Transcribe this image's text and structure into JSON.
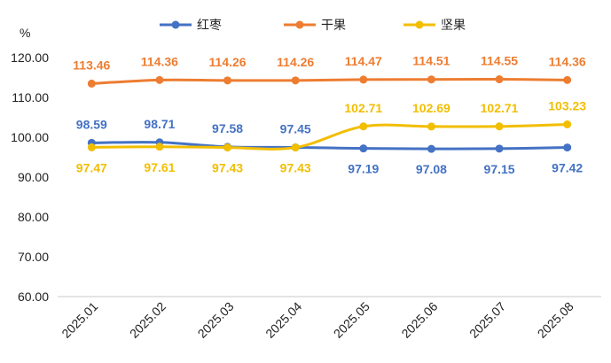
{
  "chart_data": {
    "type": "line",
    "unit_label": "%",
    "categories": [
      "2025.01",
      "2025.02",
      "2025.03",
      "2025.04",
      "2025.05",
      "2025.06",
      "2025.07",
      "2025.08"
    ],
    "ylim": [
      60,
      120
    ],
    "yticks": [
      "60.00",
      "70.00",
      "80.00",
      "90.00",
      "100.00",
      "110.00",
      "120.00"
    ],
    "ytick_values": [
      60,
      70,
      80,
      90,
      100,
      110,
      120
    ],
    "grid": false,
    "legend_position": "top",
    "series": [
      {
        "name": "红枣",
        "color": "#4472C4",
        "values": [
          98.59,
          98.71,
          97.58,
          97.45,
          97.19,
          97.08,
          97.15,
          97.42
        ],
        "labels": [
          "98.59",
          "98.71",
          "97.58",
          "97.45",
          "97.19",
          "97.08",
          "97.15",
          "97.42"
        ],
        "label_pos": [
          "above",
          "above",
          "above",
          "above",
          "below",
          "below",
          "below",
          "below"
        ]
      },
      {
        "name": "干果",
        "color": "#ED7D31",
        "values": [
          113.46,
          114.36,
          114.26,
          114.26,
          114.47,
          114.51,
          114.55,
          114.36
        ],
        "labels": [
          "113.46",
          "114.36",
          "114.26",
          "114.26",
          "114.47",
          "114.51",
          "114.55",
          "114.36"
        ],
        "label_pos": [
          "above",
          "above",
          "above",
          "above",
          "above",
          "above",
          "above",
          "above"
        ]
      },
      {
        "name": "坚果",
        "color": "#F2BE00",
        "values": [
          97.47,
          97.61,
          97.43,
          97.43,
          102.71,
          102.69,
          102.71,
          103.23
        ],
        "labels": [
          "97.47",
          "97.61",
          "97.43",
          "97.43",
          "102.71",
          "102.69",
          "102.71",
          "103.23"
        ],
        "label_pos": [
          "below",
          "below",
          "below",
          "below",
          "above",
          "above",
          "above",
          "above"
        ]
      }
    ]
  }
}
